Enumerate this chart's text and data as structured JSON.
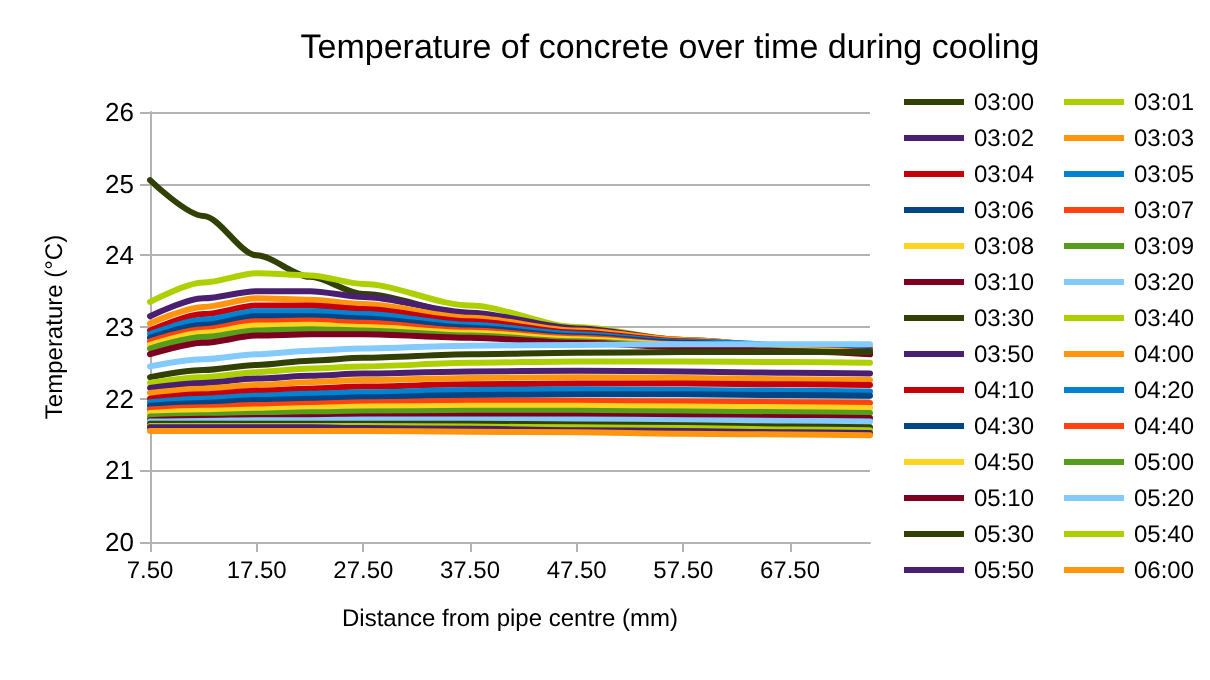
{
  "chart_data": {
    "type": "line",
    "title": "Temperature of concrete over time during cooling",
    "xlabel": "Distance from pipe centre (mm)",
    "ylabel": "Temperature (°C)",
    "x": [
      7.5,
      12.5,
      17.5,
      22.5,
      27.5,
      37.5,
      47.5,
      57.5,
      67.5,
      75
    ],
    "xlim": [
      7.5,
      75
    ],
    "xticks": [
      {
        "value": 7.5,
        "label": "7.50"
      },
      {
        "value": 17.5,
        "label": "17.50"
      },
      {
        "value": 27.5,
        "label": "27.50"
      },
      {
        "value": 37.5,
        "label": "37.50"
      },
      {
        "value": 47.5,
        "label": "47.50"
      },
      {
        "value": 57.5,
        "label": "57.50"
      },
      {
        "value": 67.5,
        "label": "67.50"
      }
    ],
    "ylim": [
      20,
      26
    ],
    "yticks": [
      20,
      21,
      22,
      23,
      24,
      25,
      26
    ],
    "grid": "y",
    "legend": "right",
    "marker": "none",
    "line_style": "solid",
    "series": [
      {
        "name": "03:00",
        "color": "#314004",
        "values": [
          25.05,
          24.55,
          24.0,
          23.7,
          23.46,
          23.18,
          22.96,
          22.8,
          22.68,
          22.63
        ]
      },
      {
        "name": "03:01",
        "color": "#aecf00",
        "values": [
          23.35,
          23.62,
          23.75,
          23.72,
          23.6,
          23.3,
          23.0,
          22.82,
          22.72,
          22.7
        ]
      },
      {
        "name": "03:02",
        "color": "#4b1f6f",
        "values": [
          23.15,
          23.4,
          23.5,
          23.5,
          23.42,
          23.2,
          22.98,
          22.82,
          22.73,
          22.7
        ]
      },
      {
        "name": "03:03",
        "color": "#ff950e",
        "values": [
          23.05,
          23.28,
          23.4,
          23.38,
          23.32,
          23.13,
          22.95,
          22.82,
          22.73,
          22.7
        ]
      },
      {
        "name": "03:04",
        "color": "#c5000b",
        "values": [
          22.95,
          23.18,
          23.3,
          23.3,
          23.25,
          23.08,
          22.92,
          22.8,
          22.72,
          22.68
        ]
      },
      {
        "name": "03:05",
        "color": "#0084d1",
        "values": [
          22.9,
          23.1,
          23.22,
          23.22,
          23.18,
          23.03,
          22.9,
          22.79,
          null,
          22.67
        ]
      },
      {
        "name": "03:06",
        "color": "#004586",
        "values": [
          22.85,
          23.03,
          23.15,
          23.15,
          23.12,
          22.99,
          22.87,
          22.78,
          22.7,
          22.66
        ]
      },
      {
        "name": "03:07",
        "color": "#ff420e",
        "values": [
          22.8,
          22.97,
          23.08,
          23.09,
          23.06,
          22.95,
          22.85,
          22.76,
          22.69,
          22.65
        ]
      },
      {
        "name": "03:08",
        "color": "#ffd320",
        "values": [
          22.75,
          22.92,
          23.02,
          23.03,
          23.0,
          22.92,
          22.83,
          22.75,
          22.68,
          22.64
        ]
      },
      {
        "name": "03:09",
        "color": "#579d1c",
        "values": [
          22.7,
          22.86,
          22.95,
          22.97,
          22.95,
          22.88,
          22.8,
          22.73,
          22.67,
          22.63
        ]
      },
      {
        "name": "03:10",
        "color": "#7e0021",
        "values": [
          22.62,
          22.78,
          22.88,
          22.9,
          22.9,
          22.85,
          22.78,
          22.72,
          22.66,
          22.62
        ]
      },
      {
        "name": "03:20",
        "color": "#83caff",
        "values": [
          22.45,
          22.55,
          22.62,
          22.67,
          22.7,
          22.74,
          22.75,
          22.76,
          22.76,
          22.76
        ]
      },
      {
        "name": "03:30",
        "color": "#314004",
        "values": [
          22.3,
          22.4,
          22.47,
          22.53,
          22.57,
          22.62,
          22.64,
          22.65,
          22.65,
          22.65
        ]
      },
      {
        "name": "03:40",
        "color": "#aecf00",
        "values": [
          22.22,
          22.3,
          22.37,
          22.42,
          22.45,
          22.5,
          22.52,
          22.52,
          22.51,
          22.5
        ]
      },
      {
        "name": "03:50",
        "color": "#4b1f6f",
        "values": [
          22.15,
          22.22,
          22.28,
          22.32,
          22.35,
          22.38,
          22.39,
          22.38,
          22.36,
          22.35
        ]
      },
      {
        "name": "04:00",
        "color": "#ff950e",
        "values": [
          22.08,
          22.14,
          22.19,
          22.23,
          22.26,
          22.29,
          22.3,
          22.29,
          22.27,
          22.26
        ]
      },
      {
        "name": "04:10",
        "color": "#c5000b",
        "values": [
          22.0,
          22.06,
          22.11,
          22.14,
          22.17,
          22.2,
          22.21,
          22.21,
          22.2,
          22.19
        ]
      },
      {
        "name": "04:20",
        "color": "#0084d1",
        "values": [
          21.95,
          22.0,
          22.04,
          22.07,
          22.09,
          22.12,
          22.13,
          22.12,
          22.11,
          22.1
        ]
      },
      {
        "name": "04:30",
        "color": "#004586",
        "values": [
          21.9,
          21.94,
          21.98,
          22.0,
          22.02,
          22.05,
          22.06,
          22.06,
          22.05,
          22.04
        ]
      },
      {
        "name": "04:40",
        "color": "#ff420e",
        "values": [
          21.85,
          21.88,
          21.91,
          21.93,
          21.95,
          21.97,
          21.97,
          21.96,
          21.95,
          21.94
        ]
      },
      {
        "name": "04:50",
        "color": "#ffd320",
        "values": [
          21.8,
          21.83,
          21.85,
          21.87,
          21.89,
          21.9,
          21.9,
          21.89,
          21.88,
          21.87
        ]
      },
      {
        "name": "05:00",
        "color": "#579d1c",
        "values": [
          21.75,
          21.77,
          21.79,
          21.81,
          21.82,
          21.83,
          21.83,
          21.82,
          21.81,
          21.8
        ]
      },
      {
        "name": "05:10",
        "color": "#7e0021",
        "values": [
          21.7,
          21.72,
          21.73,
          21.74,
          21.75,
          21.76,
          21.76,
          21.75,
          21.74,
          21.73
        ]
      },
      {
        "name": "05:20",
        "color": "#83caff",
        "values": [
          21.68,
          21.69,
          21.7,
          21.7,
          21.71,
          21.71,
          21.71,
          21.7,
          21.69,
          21.68
        ]
      },
      {
        "name": "05:30",
        "color": "#314004",
        "values": [
          21.65,
          21.65,
          21.65,
          21.65,
          21.65,
          21.65,
          21.64,
          21.63,
          21.61,
          21.6
        ]
      },
      {
        "name": "05:40",
        "color": "#aecf00",
        "values": [
          21.62,
          21.62,
          21.62,
          21.62,
          21.62,
          21.61,
          21.6,
          21.59,
          21.57,
          21.56
        ]
      },
      {
        "name": "05:50",
        "color": "#4b1f6f",
        "values": [
          21.6,
          21.6,
          21.6,
          21.6,
          21.59,
          21.58,
          21.56,
          21.55,
          21.53,
          21.52
        ]
      },
      {
        "name": "06:00",
        "color": "#ff950e",
        "values": [
          21.55,
          21.55,
          21.55,
          21.55,
          21.55,
          21.54,
          21.53,
          21.51,
          21.5,
          21.49
        ]
      }
    ]
  }
}
